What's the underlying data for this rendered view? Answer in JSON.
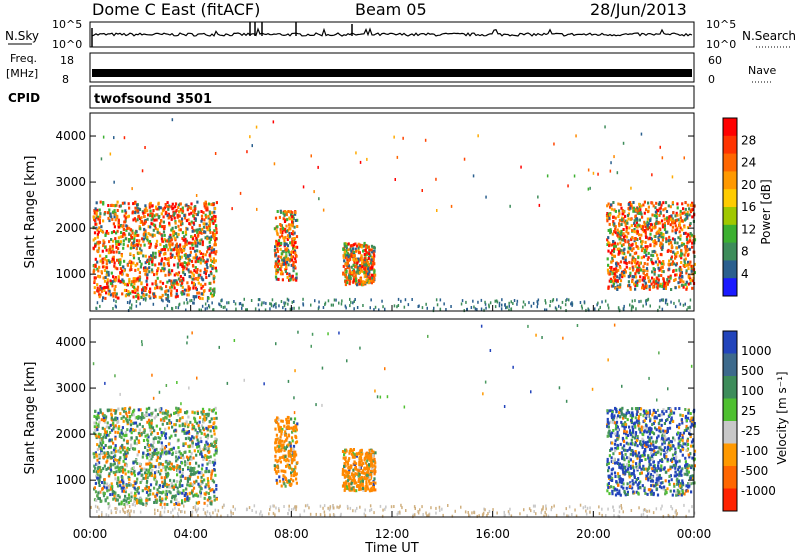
{
  "header": {
    "station": "Dome C East (fitACF)",
    "beam": "Beam 05",
    "date": "28/Jun/2013"
  },
  "nsky_panel": {
    "left_label": "N.Sky",
    "right_label": "N.Search",
    "left_ticks": [
      "10^5",
      "10^0"
    ],
    "right_ticks": [
      "10^5",
      "10^0"
    ]
  },
  "freq_panel": {
    "left_label_1": "Freq.",
    "left_label_2": "[MHz]",
    "right_label": "Nave",
    "left_ticks": [
      "18",
      "8"
    ],
    "right_ticks": [
      "60",
      "0"
    ]
  },
  "cpid_panel": {
    "label": "CPID",
    "program": "twofsound 3501"
  },
  "power_colorbar": {
    "label": "Power [dB]",
    "ticks": [
      "28",
      "24",
      "20",
      "16",
      "12",
      "8",
      "4"
    ],
    "colors": [
      "#ff0000",
      "#ff3300",
      "#ff6600",
      "#ff9900",
      "#ffcc00",
      "#a0c800",
      "#3cb030",
      "#3d8c5a",
      "#2a5f8e",
      "#1a1aff"
    ]
  },
  "velocity_colorbar": {
    "label": "Velocity [m s⁻¹]",
    "ticks": [
      "1000",
      "500",
      "100",
      "25",
      "-25",
      "-100",
      "-500",
      "-1000"
    ],
    "colors": [
      "#2244bb",
      "#3d6a8c",
      "#3d8c5a",
      "#4fc030",
      "#c8c8c8",
      "#ff9900",
      "#ff6600",
      "#ff2200"
    ]
  },
  "chart_data": [
    {
      "type": "heatmap",
      "quantity": "Power",
      "ylabel": "Slant Range [km]",
      "yticks": [
        "1000",
        "2000",
        "3000",
        "4000"
      ],
      "ylim": [
        200,
        4500
      ],
      "xlim": [
        0,
        24
      ],
      "echo_regions": [
        {
          "t0": 0.1,
          "t1": 5.0,
          "r0": 500,
          "r1": 2600
        },
        {
          "t0": 7.3,
          "t1": 8.2,
          "r0": 900,
          "r1": 2400
        },
        {
          "t0": 10.0,
          "t1": 11.3,
          "r0": 800,
          "r1": 1700
        },
        {
          "t0": 20.5,
          "t1": 24.0,
          "r0": 700,
          "r1": 2600
        }
      ]
    },
    {
      "type": "heatmap",
      "quantity": "Velocity",
      "ylabel": "Slant Range [km]",
      "yticks": [
        "1000",
        "2000",
        "3000",
        "4000"
      ],
      "xticks": [
        "00:00",
        "04:00",
        "08:00",
        "12:00",
        "16:00",
        "20:00",
        "00:00"
      ],
      "xlabel": "Time UT",
      "ylim": [
        200,
        4500
      ],
      "xlim": [
        0,
        24
      ],
      "echo_regions": [
        {
          "t0": 0.1,
          "t1": 5.0,
          "r0": 500,
          "r1": 2600
        },
        {
          "t0": 7.3,
          "t1": 8.2,
          "r0": 900,
          "r1": 2400
        },
        {
          "t0": 10.0,
          "t1": 11.3,
          "r0": 800,
          "r1": 1700
        },
        {
          "t0": 20.5,
          "t1": 24.0,
          "r0": 700,
          "r1": 2600
        }
      ]
    }
  ]
}
